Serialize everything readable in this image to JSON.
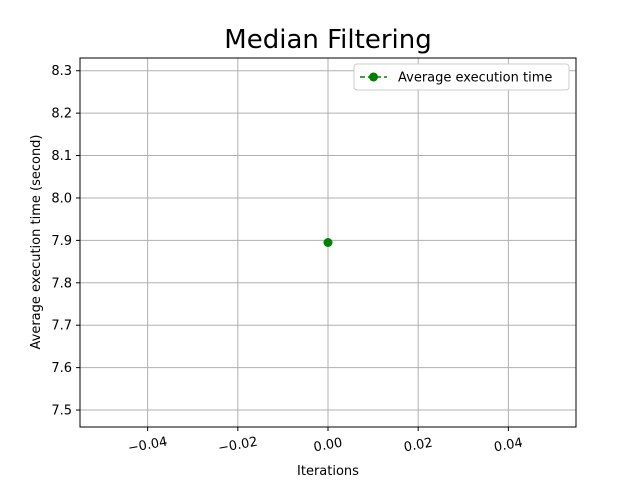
{
  "chart_data": {
    "type": "line",
    "title": "Median Filtering",
    "xlabel": "Iterations",
    "ylabel": "Average execution time (second)",
    "xlim": [
      -0.055,
      0.055
    ],
    "ylim": [
      7.46,
      8.33
    ],
    "xticks": [
      -0.04,
      -0.02,
      0.0,
      0.02,
      0.04
    ],
    "xtick_labels": [
      "−0.04",
      "−0.02",
      "0.00",
      "0.02",
      "0.04"
    ],
    "yticks": [
      7.5,
      7.6,
      7.7,
      7.8,
      7.9,
      8.0,
      8.1,
      8.2,
      8.3
    ],
    "ytick_labels": [
      "7.5",
      "7.6",
      "7.7",
      "7.8",
      "7.9",
      "8.0",
      "8.1",
      "8.2",
      "8.3"
    ],
    "grid": true,
    "legend_position": "top-right",
    "series": [
      {
        "name": "Average execution time",
        "color": "#008000",
        "linestyle": "dashed",
        "marker": "circle",
        "x": [
          0
        ],
        "y": [
          7.895
        ]
      }
    ]
  }
}
